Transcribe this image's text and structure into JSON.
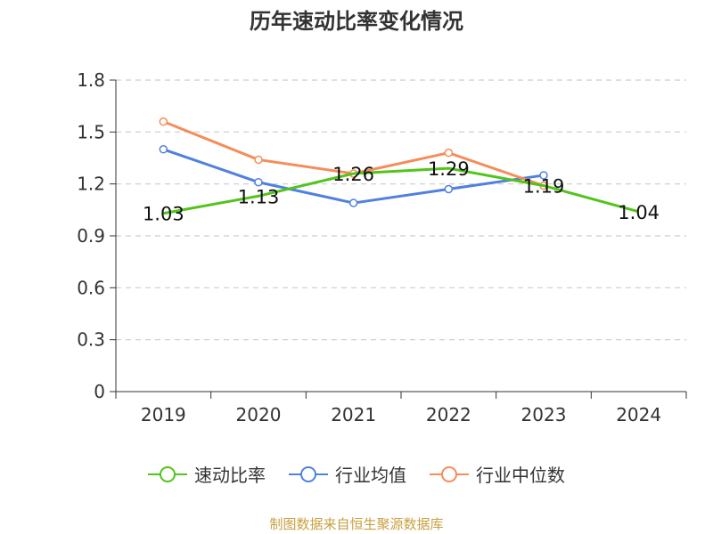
{
  "source_text": "制图数据来自恒生聚源数据库",
  "colors": {
    "speed_ratio": "#52c41a",
    "industry_avg": "#5080e0",
    "industry_median": "#f58c5a",
    "grid": "#cccccc",
    "axis": "#333333"
  },
  "chart_data": {
    "type": "line",
    "title": "历年速动比率变化情况",
    "xlabel": "",
    "ylabel": "",
    "categories": [
      "2019",
      "2020",
      "2021",
      "2022",
      "2023",
      "2024"
    ],
    "ylim": [
      0,
      1.8
    ],
    "yticks": [
      "0",
      "0.3",
      "0.6",
      "0.9",
      "1.2",
      "1.5",
      "1.8"
    ],
    "grid": true,
    "legend_position": "bottom",
    "series": [
      {
        "name": "速动比率",
        "key": "speed_ratio",
        "values": [
          1.03,
          1.13,
          1.26,
          1.29,
          1.19,
          1.04
        ],
        "labels": [
          "1.03",
          "1.13",
          "1.26",
          "1.29",
          "1.19",
          "1.04"
        ],
        "show_markers": false
      },
      {
        "name": "行业均值",
        "key": "industry_avg",
        "values": [
          1.4,
          1.21,
          1.09,
          1.17,
          1.25,
          null
        ],
        "show_markers": true
      },
      {
        "name": "行业中位数",
        "key": "industry_median",
        "values": [
          1.56,
          1.34,
          1.26,
          1.38,
          1.19,
          null
        ],
        "show_markers": true
      }
    ]
  }
}
